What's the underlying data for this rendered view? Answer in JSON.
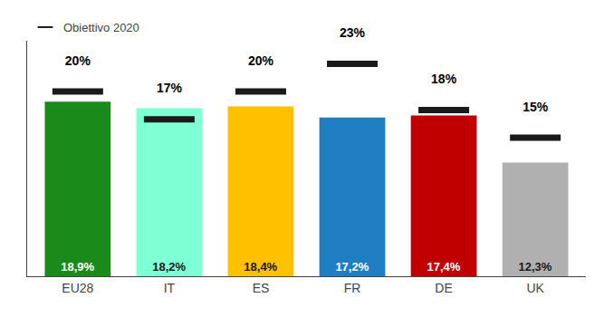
{
  "chart_data": {
    "type": "bar",
    "categories": [
      "EU28",
      "IT",
      "ES",
      "FR",
      "DE",
      "UK"
    ],
    "series": [
      {
        "type": "bar",
        "values": [
          18.9,
          18.2,
          18.4,
          17.2,
          17.4,
          12.3
        ],
        "value_labels": [
          "18,9%",
          "18,2%",
          "18,4%",
          "17,2%",
          "17,4%",
          "12,3%"
        ],
        "colors": [
          "#1a8a1a",
          "#7fffd4",
          "#ffc000",
          "#1f7ec1",
          "#c00000",
          "#b0b0b0"
        ]
      },
      {
        "name": "Obiettivo 2020",
        "type": "marker",
        "marker": "line",
        "color": "#1a1a1a",
        "values": [
          20,
          17,
          20,
          23,
          18,
          15
        ],
        "value_labels": [
          "20%",
          "17%",
          "20%",
          "23%",
          "18%",
          "15%"
        ]
      }
    ],
    "ylim": [
      0,
      25.5
    ],
    "grid": false,
    "legend": "upper left",
    "data_labels": true,
    "tick_labels": "x"
  }
}
